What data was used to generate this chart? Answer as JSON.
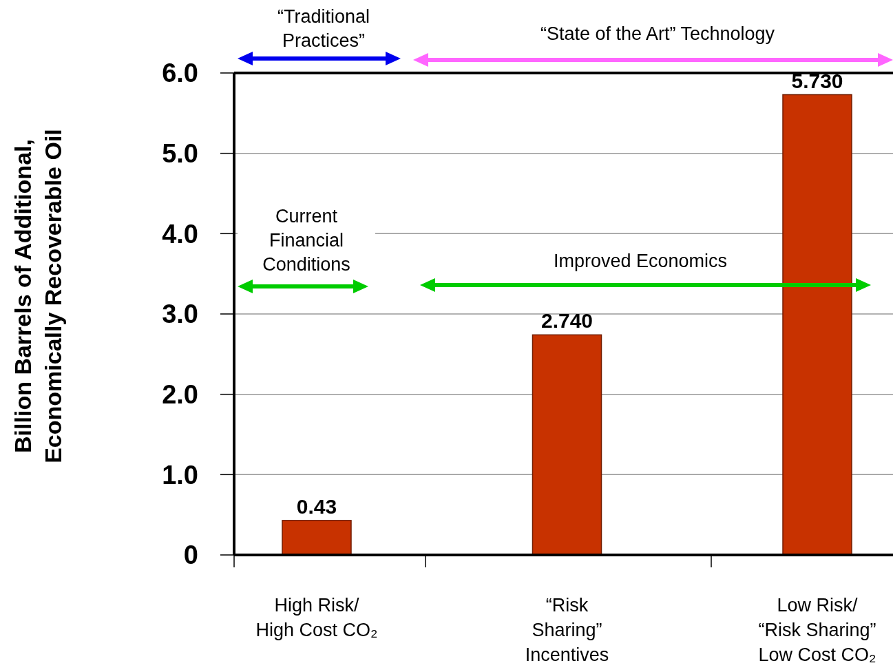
{
  "chart_data": {
    "type": "bar",
    "ylabel": "Billion Barrels of Additional,\nEconomically Recoverable Oil",
    "categories": [
      "High Risk/\nHigh Cost CO₂",
      "“Risk\nSharing”\nIncentives",
      "Low Risk/\n“Risk Sharing”\nLow Cost CO₂"
    ],
    "values": [
      0.43,
      2.74,
      5.73
    ],
    "value_labels": [
      "0.43",
      "2.740",
      "5.730"
    ],
    "color": "#c83200",
    "ylim": [
      0,
      6
    ],
    "yticks": [
      {
        "value": 0,
        "label": "0"
      },
      {
        "value": 1,
        "label": "1.0"
      },
      {
        "value": 2,
        "label": "2.0"
      },
      {
        "value": 3,
        "label": "3.0"
      },
      {
        "value": 4,
        "label": "4.0"
      },
      {
        "value": 5,
        "label": "5.0"
      },
      {
        "value": 6,
        "label": "6.0"
      }
    ],
    "grid": "y",
    "annotations": [
      "“Traditional\nPractices”",
      "“State of the Art” Technology",
      "Current\nFinancial\nConditions",
      "Improved Economics"
    ]
  }
}
